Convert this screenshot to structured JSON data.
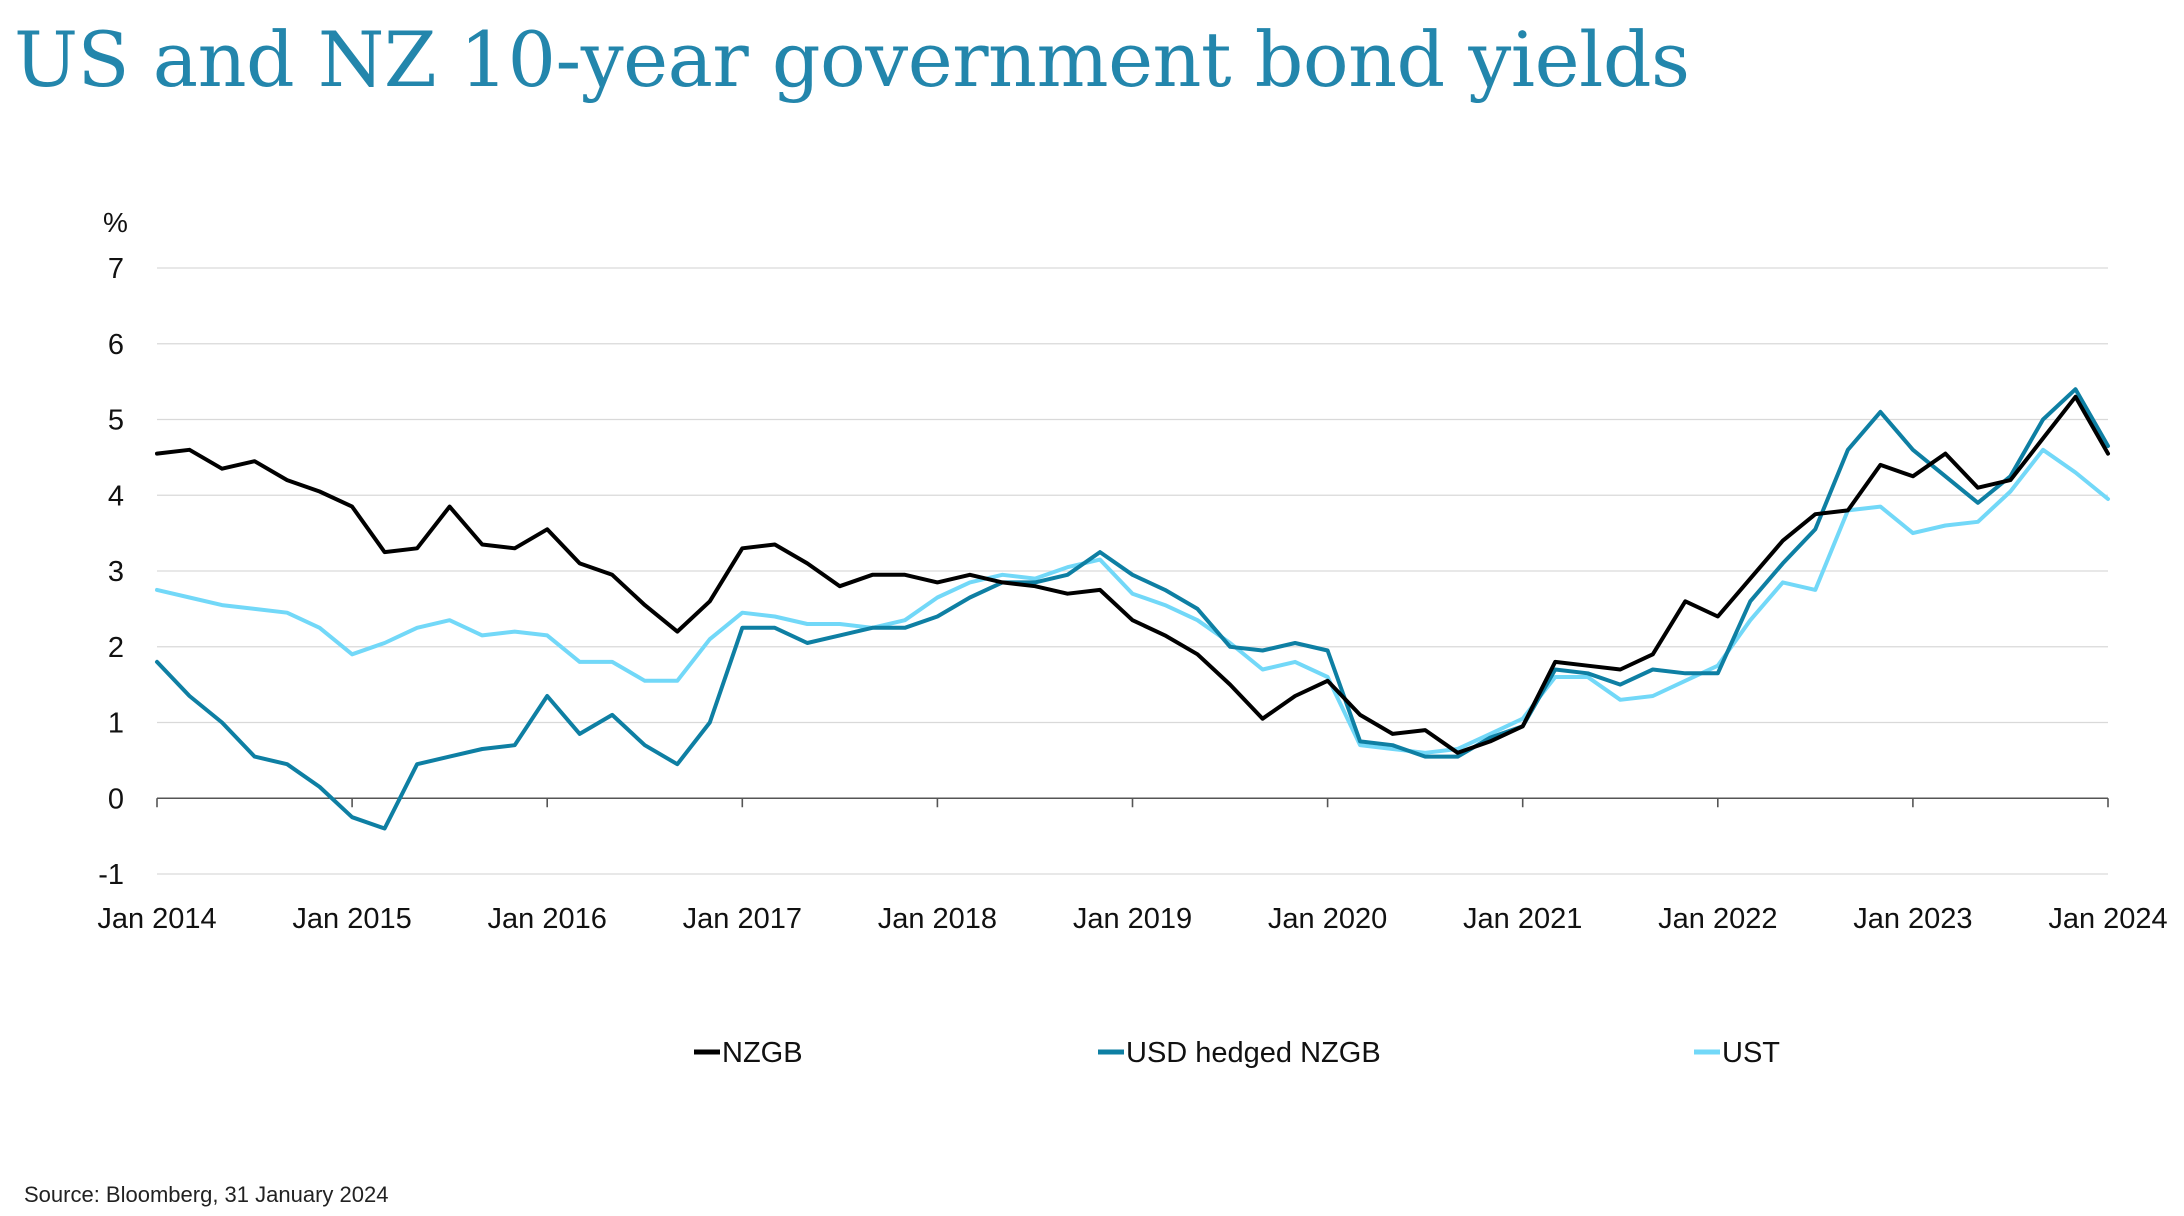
{
  "title": "US and NZ 10-year government bond yields",
  "source": "Source: Bloomberg, 31 January 2024",
  "colors": {
    "title": "#2386AC",
    "NZGB": "#000000",
    "USD hedged NZGB": "#0E7FA3",
    "UST": "#72D8F8",
    "grid": "#d9d9d9",
    "axis": "#555555",
    "text": "#111111"
  },
  "chart_data": {
    "type": "line",
    "title": "US and NZ 10-year government bond yields",
    "ylabel": "%",
    "xlabel": "",
    "ylim": [
      -1,
      7
    ],
    "yticks": [
      "7",
      "6",
      "5",
      "4",
      "3",
      "2",
      "1",
      "0",
      "-1"
    ],
    "ytick_values": [
      7,
      6,
      5,
      4,
      3,
      2,
      1,
      0,
      -1
    ],
    "xlim": [
      "2014-01",
      "2024-01"
    ],
    "xtick_labels": [
      "Jan 2014",
      "Jan 2015",
      "Jan 2016",
      "Jan 2017",
      "Jan 2018",
      "Jan 2019",
      "Jan 2020",
      "Jan 2021",
      "Jan 2022",
      "Jan 2023",
      "Jan 2024"
    ],
    "xtick_dates": [
      "2014-01",
      "2015-01",
      "2016-01",
      "2017-01",
      "2018-01",
      "2019-01",
      "2020-01",
      "2021-01",
      "2022-01",
      "2023-01",
      "2024-01"
    ],
    "grid": "horizontal",
    "legend_position": "bottom",
    "x": [
      "2014-01",
      "2014-03",
      "2014-05",
      "2014-07",
      "2014-09",
      "2014-11",
      "2015-01",
      "2015-03",
      "2015-05",
      "2015-07",
      "2015-09",
      "2015-11",
      "2016-01",
      "2016-03",
      "2016-05",
      "2016-07",
      "2016-09",
      "2016-11",
      "2017-01",
      "2017-03",
      "2017-05",
      "2017-07",
      "2017-09",
      "2017-11",
      "2018-01",
      "2018-03",
      "2018-05",
      "2018-07",
      "2018-09",
      "2018-11",
      "2019-01",
      "2019-03",
      "2019-05",
      "2019-07",
      "2019-09",
      "2019-11",
      "2020-01",
      "2020-03",
      "2020-05",
      "2020-07",
      "2020-09",
      "2020-11",
      "2021-01",
      "2021-03",
      "2021-05",
      "2021-07",
      "2021-09",
      "2021-11",
      "2022-01",
      "2022-03",
      "2022-05",
      "2022-07",
      "2022-09",
      "2022-11",
      "2023-01",
      "2023-03",
      "2023-05",
      "2023-07",
      "2023-09",
      "2023-11",
      "2024-01"
    ],
    "series": [
      {
        "name": "NZGB",
        "values": [
          4.55,
          4.6,
          4.35,
          4.45,
          4.2,
          4.05,
          3.85,
          3.25,
          3.3,
          3.85,
          3.35,
          3.3,
          3.55,
          3.1,
          2.95,
          2.55,
          2.2,
          2.6,
          3.3,
          3.35,
          3.1,
          2.8,
          2.95,
          2.95,
          2.85,
          2.95,
          2.85,
          2.8,
          2.7,
          2.75,
          2.35,
          2.15,
          1.9,
          1.5,
          1.05,
          1.35,
          1.55,
          1.1,
          0.85,
          0.9,
          0.6,
          0.75,
          0.95,
          1.8,
          1.75,
          1.7,
          1.9,
          2.6,
          2.4,
          2.9,
          3.4,
          3.75,
          3.8,
          4.4,
          4.25,
          4.55,
          4.1,
          4.2,
          4.75,
          5.3,
          4.55
        ]
      },
      {
        "name": "USD hedged NZGB",
        "values": [
          1.8,
          1.35,
          1.0,
          0.55,
          0.45,
          0.15,
          -0.25,
          -0.4,
          0.45,
          0.55,
          0.65,
          0.7,
          1.35,
          0.85,
          1.1,
          0.7,
          0.45,
          1.0,
          2.25,
          2.25,
          2.05,
          2.15,
          2.25,
          2.25,
          2.4,
          2.65,
          2.85,
          2.85,
          2.95,
          3.25,
          2.95,
          2.75,
          2.5,
          2.0,
          1.95,
          2.05,
          1.95,
          0.75,
          0.7,
          0.55,
          0.55,
          0.8,
          0.95,
          1.7,
          1.65,
          1.5,
          1.7,
          1.65,
          1.65,
          2.6,
          3.1,
          3.55,
          4.6,
          5.1,
          4.6,
          4.25,
          3.9,
          4.25,
          5.0,
          5.4,
          4.65
        ]
      },
      {
        "name": "UST",
        "values": [
          2.75,
          2.65,
          2.55,
          2.5,
          2.45,
          2.25,
          1.9,
          2.05,
          2.25,
          2.35,
          2.15,
          2.2,
          2.15,
          1.8,
          1.8,
          1.55,
          1.55,
          2.1,
          2.45,
          2.4,
          2.3,
          2.3,
          2.25,
          2.35,
          2.65,
          2.85,
          2.95,
          2.9,
          3.05,
          3.15,
          2.7,
          2.55,
          2.35,
          2.05,
          1.7,
          1.8,
          1.6,
          0.7,
          0.65,
          0.6,
          0.65,
          0.85,
          1.05,
          1.6,
          1.6,
          1.3,
          1.35,
          1.55,
          1.75,
          2.35,
          2.85,
          2.75,
          3.8,
          3.85,
          3.5,
          3.6,
          3.65,
          4.05,
          4.6,
          4.3,
          3.95
        ]
      }
    ]
  }
}
